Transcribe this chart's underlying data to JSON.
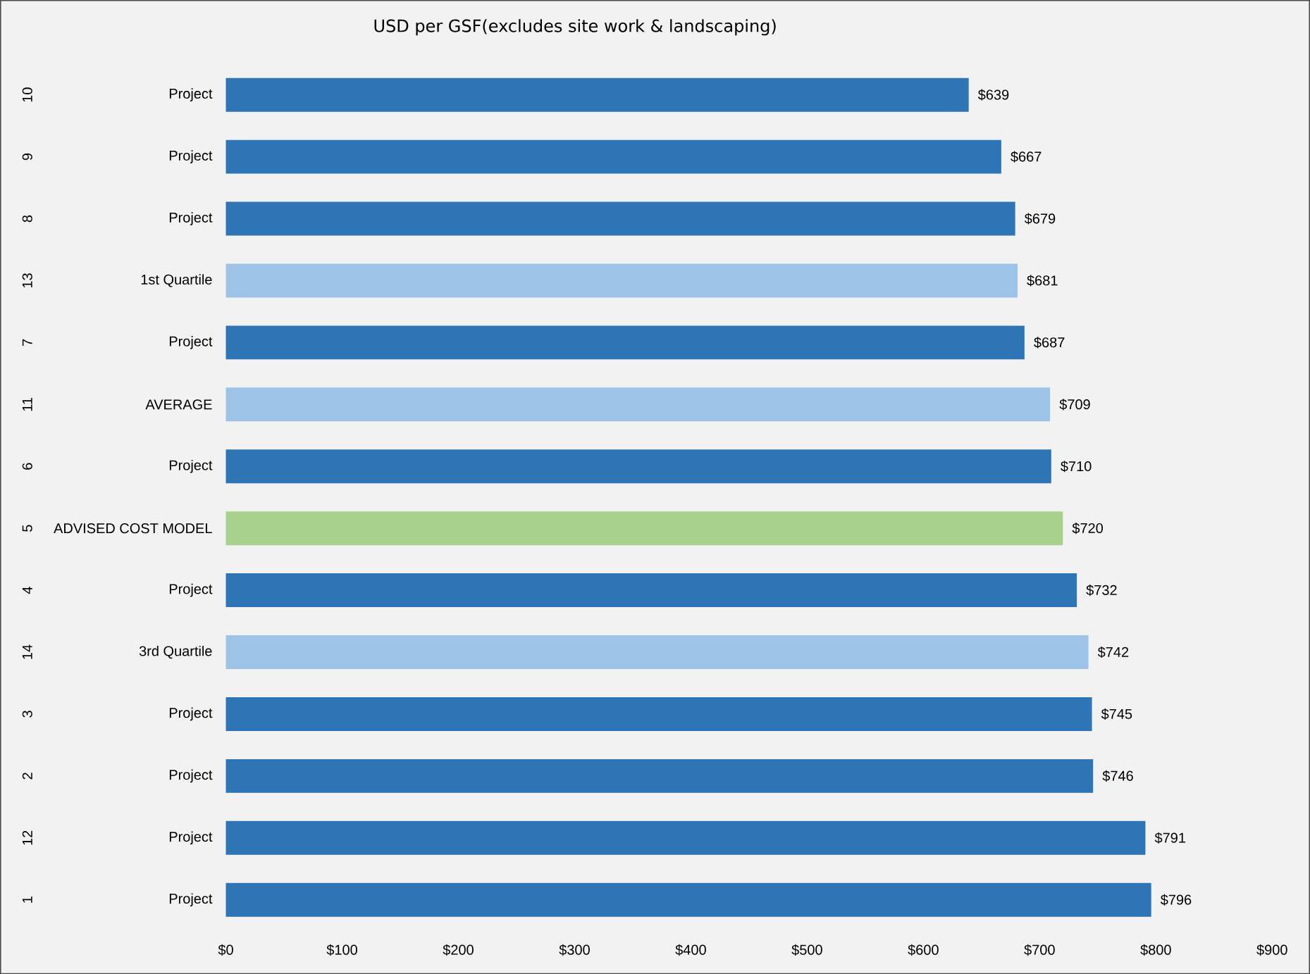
{
  "chart_data": {
    "type": "bar",
    "orientation": "horizontal",
    "title": "USD per GSF(excludes site work & landscaping)",
    "categories": [
      "Project",
      "Project",
      "Project",
      "1st Quartile",
      "Project",
      "AVERAGE",
      "Project",
      "ADVISED COST MODEL",
      "Project",
      "3rd Quartile",
      "Project",
      "Project",
      "Project",
      "Project"
    ],
    "values": [
      639,
      667,
      679,
      681,
      687,
      709,
      710,
      720,
      732,
      742,
      745,
      746,
      791,
      796
    ],
    "value_labels": [
      "$639",
      "$667",
      "$679",
      "$681",
      "$687",
      "$709",
      "$710",
      "$720",
      "$732",
      "$742",
      "$745",
      "$746",
      "$791",
      "$796"
    ],
    "colors": [
      "#2e75b6",
      "#2e75b6",
      "#2e75b6",
      "#9dc3e6",
      "#2e75b6",
      "#9dc3e6",
      "#2e75b6",
      "#a9d18e",
      "#2e75b6",
      "#9dc3e6",
      "#2e75b6",
      "#2e75b6",
      "#2e75b6",
      "#2e75b6"
    ],
    "annotations": [
      "10",
      "9",
      "8",
      "13",
      "7",
      "11",
      "6",
      "5",
      "4",
      "14",
      "3",
      "2",
      "12",
      "1"
    ],
    "xlim": [
      0,
      900
    ],
    "xticks": [
      {
        "value": 0,
        "label": "$0"
      },
      {
        "value": 100,
        "label": "$100"
      },
      {
        "value": 200,
        "label": "$200"
      },
      {
        "value": 300,
        "label": "$300"
      },
      {
        "value": 400,
        "label": "$400"
      },
      {
        "value": 500,
        "label": "$500"
      },
      {
        "value": 600,
        "label": "$600"
      },
      {
        "value": 700,
        "label": "$700"
      },
      {
        "value": 800,
        "label": "$800"
      },
      {
        "value": 900,
        "label": "$900"
      }
    ],
    "grid": false
  }
}
